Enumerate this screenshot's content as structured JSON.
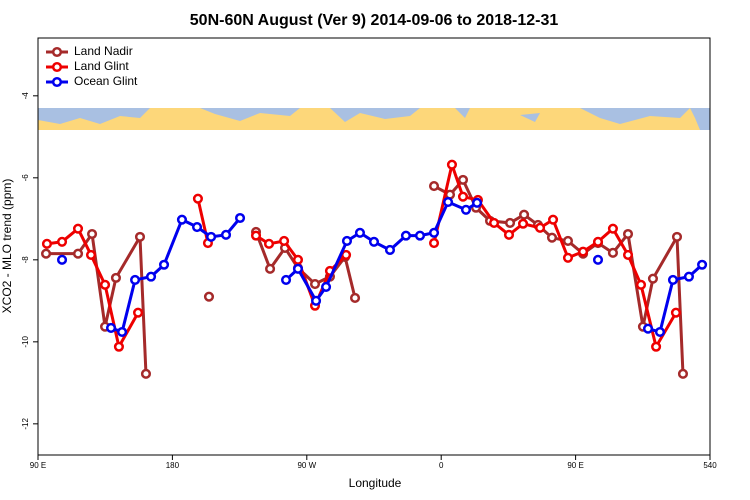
{
  "chart_data": {
    "type": "line",
    "title": "50N-60N August (Ver 9)   2014-09-06 to 2018-12-31",
    "x_label": "Longitude",
    "y_label": "XCO2 - MLO trend (ppm)",
    "xlim": [
      90,
      540
    ],
    "xticks": [
      {
        "value": 90,
        "label": "90 E"
      },
      180,
      {
        "value": 270,
        "label": "90 W"
      },
      {
        "value": 360,
        "label": "0"
      },
      {
        "value": 450,
        "label": "90 E"
      },
      540
    ],
    "ylim": [
      -12.76,
      -2.59
    ],
    "yticks": [
      -12,
      -10,
      -8,
      -6,
      -4
    ],
    "legend": "top-left",
    "series": [
      {
        "name": "Land Nadir",
        "color": "#a52a2a",
        "x": [
          95.4,
          116.8,
          126.2,
          134.9,
          142.2,
          158.3,
          162.3,
          183,
          204.5,
          220,
          236,
          245.4,
          255.4,
          264.1,
          275.5,
          285.5,
          295.6,
          302.3,
          330,
          355.2,
          365.9,
          374.6,
          383.3,
          392.7,
          406.1,
          415.5,
          424.8,
          434.2,
          444.9,
          455,
          465,
          475,
          485.1,
          495.1,
          501.8,
          517.9,
          521.9
        ],
        "values": [
          -7.85,
          -7.85,
          -7.37,
          -9.63,
          -8.44,
          -7.44,
          -10.78,
          null,
          -8.9,
          null,
          -7.32,
          -8.22,
          -7.71,
          -8.2,
          -8.59,
          -8.41,
          -7.93,
          -8.93,
          null,
          -6.2,
          -6.41,
          -6.05,
          -6.73,
          -7.05,
          -7.1,
          -6.9,
          -7.15,
          -7.46,
          -7.54,
          -7.85,
          -7.59,
          -7.83,
          -7.37,
          -9.63,
          -8.46,
          -7.44,
          -10.78
        ]
      },
      {
        "name": "Land Glint",
        "color": "#ee0000",
        "x": [
          96,
          106.1,
          116.8,
          125.5,
          134.9,
          144.2,
          157,
          177,
          197.1,
          203.8,
          220,
          236,
          244.7,
          254.8,
          264.1,
          275.5,
          285.5,
          296.3,
          325,
          355.2,
          367.2,
          374.6,
          384.6,
          395.4,
          405.4,
          414.8,
          426.2,
          434.9,
          444.9,
          455,
          465,
          475,
          485.1,
          493.8,
          503.9,
          517.2
        ],
        "values": [
          -7.61,
          -7.56,
          -7.24,
          -7.88,
          -8.61,
          -10.12,
          -9.29,
          null,
          -6.51,
          -7.59,
          null,
          -7.41,
          -7.61,
          -7.54,
          -8.0,
          -9.12,
          -8.27,
          -7.88,
          null,
          -7.59,
          -5.68,
          -6.46,
          -6.54,
          -7.1,
          -7.39,
          -7.12,
          -7.22,
          -7.02,
          -7.95,
          -7.8,
          -7.56,
          -7.24,
          -7.88,
          -8.61,
          -10.12,
          -9.29
        ]
      },
      {
        "name": "Ocean Glint",
        "color": "#0000ee",
        "x": [
          106.1,
          122,
          138.9,
          146.3,
          155,
          165.7,
          174.4,
          186.4,
          196.5,
          205.9,
          215.9,
          225.3,
          240,
          256.1,
          264.1,
          276.2,
          282.9,
          296.9,
          305.6,
          315,
          325.7,
          336.4,
          345.8,
          355.2,
          364.6,
          376.6,
          384,
          425,
          465,
          480,
          498.5,
          506.5,
          515.2,
          525.9,
          534.7
        ],
        "values": [
          -8.0,
          null,
          -9.66,
          -9.76,
          -8.49,
          -8.41,
          -8.12,
          -7.02,
          -7.2,
          -7.44,
          -7.39,
          -6.98,
          null,
          -8.49,
          -8.22,
          -9.0,
          -8.66,
          -7.54,
          -7.34,
          -7.56,
          -7.76,
          -7.41,
          -7.41,
          -7.34,
          -6.59,
          -6.78,
          -6.61,
          null,
          -8.0,
          null,
          -9.68,
          -9.76,
          -8.49,
          -8.41,
          -8.12
        ]
      }
    ]
  }
}
